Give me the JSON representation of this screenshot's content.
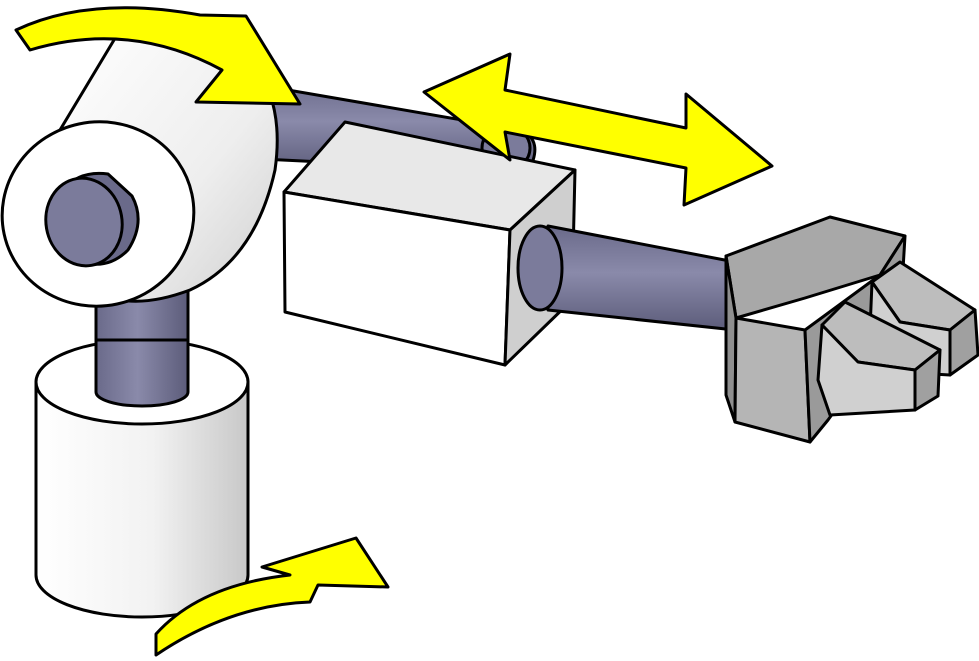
{
  "diagram": {
    "colors": {
      "background": "#ffffff",
      "rod": "#7b7b9b",
      "rod_dark": "#5c5c7a",
      "white_part": "#f2f2f2",
      "white_shade": "#d0d0d0",
      "gray_part": "#a9a9a9",
      "gray_dark": "#8a8a8a",
      "gray_light": "#cfcfcf",
      "arrow": "#ffff00",
      "outline": "#000000"
    },
    "parts": [
      {
        "id": "base-cylinder",
        "icon": "cylinder-icon"
      },
      {
        "id": "vertical-rod",
        "icon": "rod-icon"
      },
      {
        "id": "shoulder-cylinder",
        "icon": "cylinder-icon"
      },
      {
        "id": "upper-arm-rod",
        "icon": "rod-icon"
      },
      {
        "id": "slider-block",
        "icon": "box-icon"
      },
      {
        "id": "forearm-rod",
        "icon": "rod-icon"
      },
      {
        "id": "gripper",
        "icon": "gripper-icon"
      }
    ],
    "motions": [
      {
        "id": "base-rotation",
        "icon": "curved-arrow-icon"
      },
      {
        "id": "shoulder-rotation",
        "icon": "curved-arrow-icon"
      },
      {
        "id": "linear-extension",
        "icon": "double-arrow-icon"
      }
    ]
  }
}
